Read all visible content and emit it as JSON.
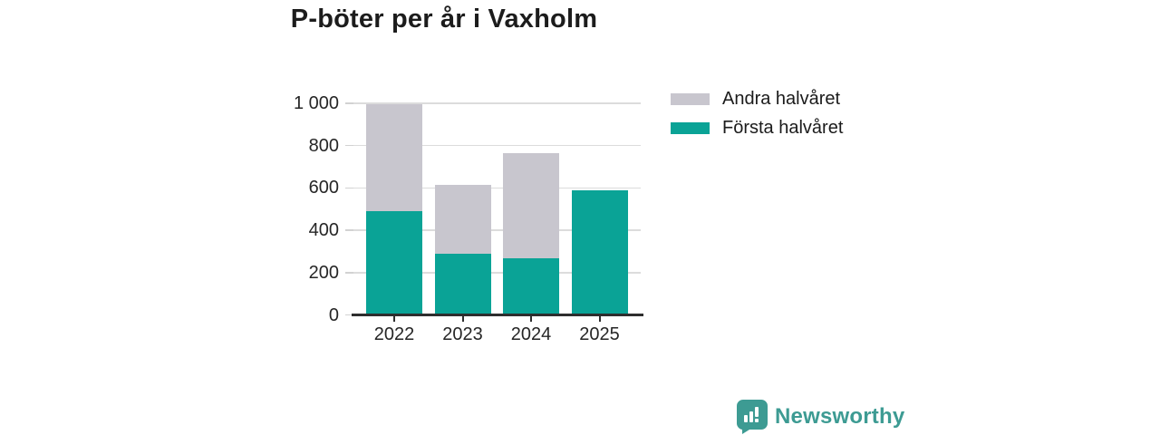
{
  "title": "P-böter per år i Vaxholm",
  "chart_data": {
    "type": "bar",
    "stacked": true,
    "title": "P-böter per år i Vaxholm",
    "categories": [
      "2022",
      "2023",
      "2024",
      "2025"
    ],
    "series": [
      {
        "name": "Första halvåret",
        "color": "#0aa396",
        "values": [
          490,
          289,
          268,
          588
        ]
      },
      {
        "name": "Andra halvåret",
        "color": "#c8c6ce",
        "values": [
          505,
          325,
          498,
          0
        ]
      }
    ],
    "totals": [
      995,
      614,
      766,
      588
    ],
    "xlabel": "",
    "ylabel": "",
    "ylim": [
      0,
      1000
    ],
    "yticks": [
      0,
      200,
      400,
      600,
      800,
      1000
    ],
    "ytick_labels": [
      "0",
      "200",
      "400",
      "600",
      "800",
      "1 000"
    ],
    "grid": true,
    "legend_position": "top-right"
  },
  "legend": {
    "items": [
      {
        "label": "Andra halvåret",
        "color": "#c8c6ce"
      },
      {
        "label": "Första halvåret",
        "color": "#0aa396"
      }
    ]
  },
  "branding": {
    "name": "Newsworthy",
    "color": "#3d9b93"
  },
  "colors": {
    "teal": "#0aa396",
    "gray": "#c8c6ce",
    "gridline": "#dcdcdc",
    "axis": "#2e2e2e",
    "text": "#262626",
    "logo_teal": "#3d9b93",
    "background": "#ffffff"
  }
}
